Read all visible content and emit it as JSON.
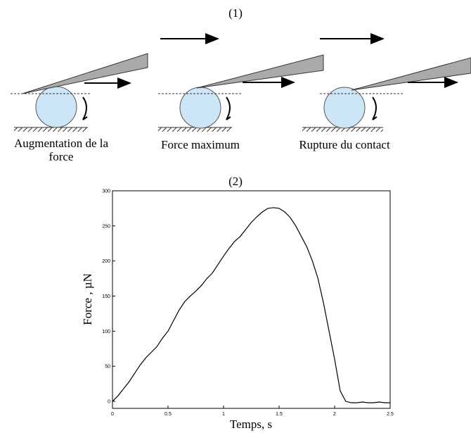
{
  "diagram": {
    "title": "(1)",
    "panels": [
      {
        "label": "Augmentation de la force"
      },
      {
        "label": "Force maximum"
      },
      {
        "label": "Rupture du contact"
      }
    ]
  },
  "chart_data": {
    "type": "line",
    "title": "(2)",
    "x_label": "Temps, s",
    "y_label": "Force , µN",
    "x": [
      0,
      0.05,
      0.1,
      0.15,
      0.2,
      0.25,
      0.3,
      0.35,
      0.4,
      0.45,
      0.5,
      0.55,
      0.6,
      0.65,
      0.7,
      0.75,
      0.8,
      0.85,
      0.9,
      0.95,
      1,
      1.05,
      1.1,
      1.15,
      1.2,
      1.25,
      1.3,
      1.35,
      1.4,
      1.45,
      1.5,
      1.55,
      1.6,
      1.65,
      1.7,
      1.75,
      1.8,
      1.85,
      1.9,
      1.95,
      2,
      2.05,
      2.1,
      2.15,
      2.2,
      2.25,
      2.3,
      2.35,
      2.4,
      2.45,
      2.5
    ],
    "series": [
      {
        "color": "#000000",
        "values": [
          0,
          8,
          18,
          28,
          40,
          52,
          62,
          70,
          78,
          90,
          100,
          115,
          130,
          142,
          150,
          157,
          165,
          175,
          183,
          195,
          207,
          218,
          228,
          235,
          245,
          255,
          263,
          270,
          275,
          276,
          275,
          270,
          262,
          250,
          235,
          220,
          200,
          175,
          140,
          100,
          60,
          15,
          0,
          -2,
          -2,
          -1,
          -2,
          -2,
          -1,
          -2,
          -2
        ]
      }
    ],
    "xlim": [
      0,
      2.5
    ],
    "ylim": [
      -10,
      300
    ],
    "xticks": [
      0,
      0.5,
      1,
      1.5,
      2,
      2.5
    ],
    "yticks": [
      0,
      50,
      100,
      150,
      200,
      250,
      300
    ]
  }
}
